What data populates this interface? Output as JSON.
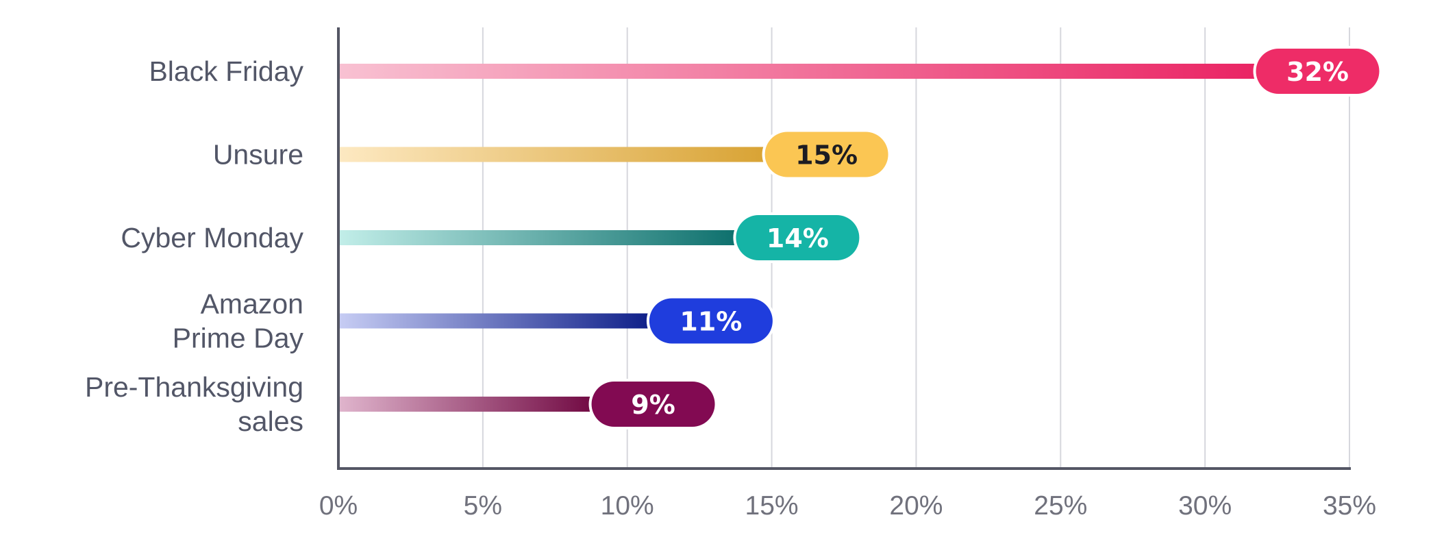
{
  "chart_data": {
    "type": "bar",
    "orientation": "horizontal",
    "categories": [
      [
        "Black Friday"
      ],
      [
        "Unsure"
      ],
      [
        "Cyber Monday"
      ],
      [
        "Amazon",
        "Prime Day"
      ],
      [
        "Pre-Thanksgiving",
        "sales"
      ]
    ],
    "values": [
      32,
      15,
      14,
      11,
      9
    ],
    "value_labels": [
      "32%",
      "15%",
      "14%",
      "11%",
      "9%"
    ],
    "xlim": [
      0,
      35
    ],
    "x_ticks": [
      0,
      5,
      10,
      15,
      20,
      25,
      30,
      35
    ],
    "x_tick_labels": [
      "0%",
      "5%",
      "10%",
      "15%",
      "20%",
      "25%",
      "30%",
      "35%"
    ],
    "grid": "vertical",
    "legend": "none",
    "colors": [
      {
        "light": "#f8c1d2",
        "dark": "#ea2363",
        "pill": "#ee2c67",
        "text": "#ffffff"
      },
      {
        "light": "#fde9c2",
        "dark": "#d8a232",
        "pill": "#fbc653",
        "text": "#1c1c22"
      },
      {
        "light": "#c2eee9",
        "dark": "#0b6e6b",
        "pill": "#15b4a6",
        "text": "#ffffff"
      },
      {
        "light": "#c7cdf4",
        "dark": "#0b1c87",
        "pill": "#1f3ddd",
        "text": "#ffffff"
      },
      {
        "light": "#e0b5cd",
        "dark": "#6f0640",
        "pill": "#820a52",
        "text": "#ffffff"
      }
    ],
    "axis_color": "#545664",
    "grid_color": "#d6d7dd"
  }
}
